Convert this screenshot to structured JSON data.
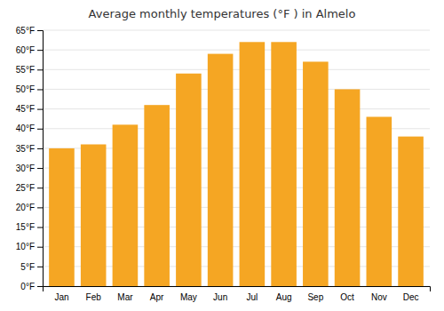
{
  "chart_data": {
    "type": "bar",
    "title": "Average monthly temperatures (°F ) in Almelo",
    "categories": [
      "Jan",
      "Feb",
      "Mar",
      "Apr",
      "May",
      "Jun",
      "Jul",
      "Aug",
      "Sep",
      "Oct",
      "Nov",
      "Dec"
    ],
    "values": [
      35,
      36,
      41,
      46,
      54,
      59,
      62,
      62,
      57,
      50,
      43,
      38
    ],
    "color": "#F5A623",
    "ylim": [
      0,
      65
    ],
    "yticks": [
      {
        "value": 0,
        "label": "0°F"
      },
      {
        "value": 5,
        "label": "5°F"
      },
      {
        "value": 10,
        "label": "10°F"
      },
      {
        "value": 15,
        "label": "15°F"
      },
      {
        "value": 20,
        "label": "20°F"
      },
      {
        "value": 25,
        "label": "25°F"
      },
      {
        "value": 30,
        "label": "30°F"
      },
      {
        "value": 35,
        "label": "35°F"
      },
      {
        "value": 40,
        "label": "40°F"
      },
      {
        "value": 45,
        "label": "45°F"
      },
      {
        "value": 50,
        "label": "50°F"
      },
      {
        "value": 55,
        "label": "55°F"
      },
      {
        "value": 60,
        "label": "60°F"
      },
      {
        "value": 65,
        "label": "65°F"
      }
    ],
    "grid": true
  }
}
